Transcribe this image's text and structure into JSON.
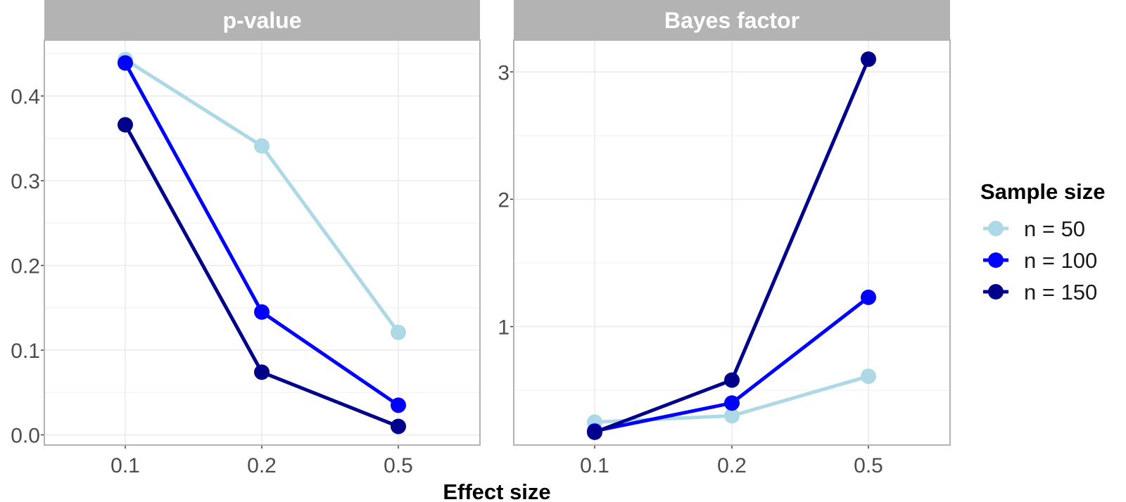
{
  "chart_data": [
    {
      "type": "line",
      "title": "p-value",
      "xlabel": "Effect size",
      "ylabel": "",
      "categories": [
        "0.1",
        "0.2",
        "0.5"
      ],
      "ylim": [
        -0.012,
        0.466
      ],
      "yticks": [
        "0.0",
        "0.1",
        "0.2",
        "0.3",
        "0.4"
      ],
      "ytick_values": [
        0,
        0.1,
        0.2,
        0.3,
        0.4
      ],
      "grid": true,
      "series": [
        {
          "name": "n = 50",
          "values": [
            0.443,
            0.341,
            0.121
          ]
        },
        {
          "name": "n = 100",
          "values": [
            0.439,
            0.145,
            0.035
          ]
        },
        {
          "name": "n = 150",
          "values": [
            0.366,
            0.074,
            0.01
          ]
        }
      ]
    },
    {
      "type": "line",
      "title": "Bayes factor",
      "xlabel": "Effect size",
      "ylabel": "",
      "categories": [
        "0.1",
        "0.2",
        "0.5"
      ],
      "ylim": [
        0.07,
        3.25
      ],
      "yticks": [
        "1",
        "2",
        "3"
      ],
      "ytick_values": [
        1,
        2,
        3
      ],
      "grid": true,
      "series": [
        {
          "name": "n = 50",
          "values": [
            0.25,
            0.3,
            0.61
          ]
        },
        {
          "name": "n = 100",
          "values": [
            0.18,
            0.4,
            1.23
          ]
        },
        {
          "name": "n = 150",
          "values": [
            0.17,
            0.58,
            3.1
          ]
        }
      ]
    }
  ],
  "shared_xlabel": "Effect size",
  "legend": {
    "title": "Sample size",
    "placement": "right",
    "items": [
      "n = 50",
      "n = 100",
      "n = 150"
    ]
  },
  "colors": {
    "n = 50": "#add8e6",
    "n = 100": "#0000ff",
    "n = 150": "#00008b",
    "strip": "#b3b3b3",
    "panel_border": "#b3b3b3",
    "grid": "#ebebeb"
  }
}
